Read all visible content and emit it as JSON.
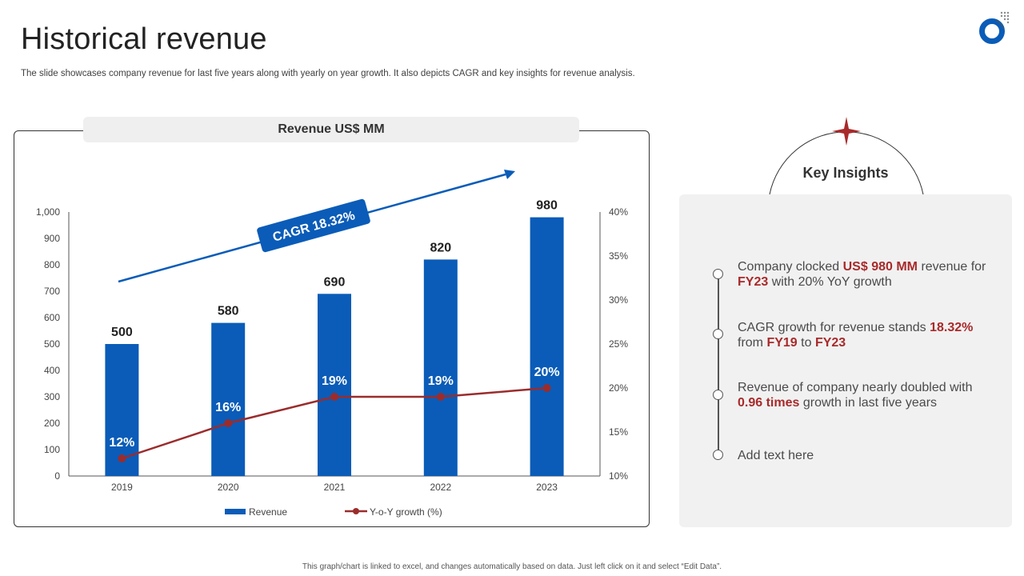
{
  "slide": {
    "title": "Historical revenue",
    "subtitle": "The slide showcases company revenue for last five years along with yearly on year growth. It also depicts CAGR and key insights for revenue analysis.",
    "footer": "This graph/chart is linked to excel, and changes automatically based on data. Just left click on it and select “Edit Data”."
  },
  "chart_data": {
    "type": "bar",
    "title": "Revenue US$ MM",
    "categories": [
      "2019",
      "2020",
      "2021",
      "2022",
      "2023"
    ],
    "series": [
      {
        "name": "Revenue",
        "type": "bar",
        "axis": "left",
        "values": [
          500,
          580,
          690,
          820,
          980
        ],
        "labels": [
          "500",
          "580",
          "690",
          "820",
          "980"
        ],
        "color": "#0a5cb8"
      },
      {
        "name": "Y-o-Y growth (%)",
        "type": "line",
        "axis": "right",
        "values": [
          12,
          16,
          19,
          19,
          20
        ],
        "labels": [
          "12%",
          "16%",
          "19%",
          "19%",
          "20%"
        ],
        "color": "#9b2c2c"
      }
    ],
    "y_left": {
      "min": 0,
      "max": 1000,
      "ticks": [
        "0",
        "100",
        "200",
        "300",
        "400",
        "500",
        "600",
        "700",
        "800",
        "900",
        "1,000"
      ]
    },
    "y_right": {
      "min": 10,
      "max": 40,
      "ticks": [
        "10%",
        "15%",
        "20%",
        "25%",
        "30%",
        "35%",
        "40%"
      ]
    },
    "annotation": "CAGR 18.32%",
    "legend": "bottom",
    "grid": false
  },
  "insights": {
    "title": "Key Insights",
    "items": [
      {
        "parts": [
          {
            "t": "Company clocked ",
            "h": false
          },
          {
            "t": "US$ 980 MM",
            "h": true
          },
          {
            "t": " revenue for ",
            "h": false
          },
          {
            "t": "FY23",
            "h": true
          },
          {
            "t": " with 20% YoY growth",
            "h": false
          }
        ]
      },
      {
        "parts": [
          {
            "t": "CAGR growth for revenue stands ",
            "h": false
          },
          {
            "t": "18.32%",
            "h": true
          },
          {
            "t": " from ",
            "h": false
          },
          {
            "t": "FY19",
            "h": true
          },
          {
            "t": " to ",
            "h": false
          },
          {
            "t": "FY23",
            "h": true
          }
        ]
      },
      {
        "parts": [
          {
            "t": "Revenue of company nearly doubled with ",
            "h": false
          },
          {
            "t": "0.96 times",
            "h": true
          },
          {
            "t": " growth in last five years",
            "h": false
          }
        ]
      },
      {
        "parts": [
          {
            "t": "Add text here",
            "h": false
          }
        ]
      }
    ]
  },
  "colors": {
    "accent_blue": "#0a5cb8",
    "accent_red": "#a82a2a",
    "panel_gray": "#f1f1f1"
  }
}
